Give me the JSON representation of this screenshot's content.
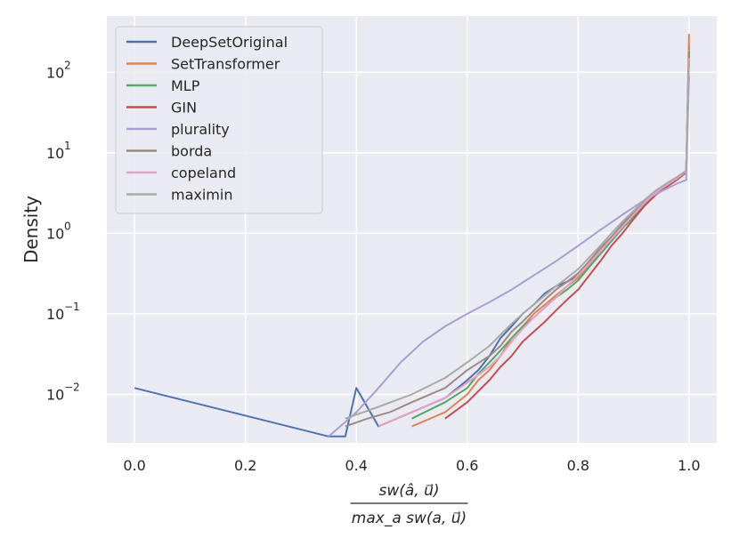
{
  "chart_data": {
    "type": "line",
    "ylabel": "Density",
    "xlabel_numerator": "sw(â, u⃗)",
    "xlabel_denominator": "max_a sw(a, u⃗)",
    "x_ticks": [
      0.0,
      0.2,
      0.4,
      0.6,
      0.8,
      1.0
    ],
    "x_tick_labels": [
      "0.0",
      "0.2",
      "0.4",
      "0.6",
      "0.8",
      "1.0"
    ],
    "y_ticks": [
      0.01,
      0.1,
      1,
      10,
      100
    ],
    "y_tick_labels": [
      {
        "base": "10",
        "exp": "−2"
      },
      {
        "base": "10",
        "exp": "−1"
      },
      {
        "base": "10",
        "exp": "0"
      },
      {
        "base": "10",
        "exp": "1"
      },
      {
        "base": "10",
        "exp": "2"
      }
    ],
    "xlim": [
      -0.05,
      1.05
    ],
    "ylim": [
      0.0025,
      500
    ],
    "yscale": "log",
    "grid": true,
    "legend_position": "upper-left",
    "background": "#eaeaf2",
    "series": [
      {
        "name": "DeepSetOriginal",
        "color": "#4c72b0",
        "x": [
          0.0,
          0.35,
          0.38,
          0.4,
          0.44,
          0.5,
          0.56,
          0.6,
          0.62,
          0.64,
          0.66,
          0.68,
          0.7,
          0.72,
          0.74,
          0.76,
          0.78,
          0.8,
          0.82,
          0.84,
          0.86,
          0.88,
          0.9,
          0.92,
          0.94,
          0.96,
          0.98,
          0.995,
          1.0
        ],
        "y": [
          0.012,
          0.003,
          0.003,
          0.012,
          0.004,
          0.006,
          0.009,
          0.015,
          0.02,
          0.03,
          0.05,
          0.07,
          0.1,
          0.13,
          0.18,
          0.22,
          0.25,
          0.3,
          0.45,
          0.65,
          0.9,
          1.3,
          1.8,
          2.5,
          3.3,
          4.0,
          5.0,
          6.0,
          220
        ]
      },
      {
        "name": "SetTransformer",
        "color": "#dd8452",
        "x": [
          0.5,
          0.56,
          0.6,
          0.62,
          0.64,
          0.66,
          0.68,
          0.7,
          0.72,
          0.74,
          0.76,
          0.78,
          0.8,
          0.82,
          0.84,
          0.86,
          0.88,
          0.9,
          0.92,
          0.94,
          0.96,
          0.98,
          0.995,
          1.0
        ],
        "y": [
          0.004,
          0.006,
          0.01,
          0.015,
          0.02,
          0.03,
          0.05,
          0.07,
          0.1,
          0.13,
          0.17,
          0.22,
          0.28,
          0.4,
          0.6,
          0.85,
          1.2,
          1.7,
          2.4,
          3.2,
          4.0,
          5.0,
          6.0,
          300
        ]
      },
      {
        "name": "MLP",
        "color": "#55a868",
        "x": [
          0.5,
          0.56,
          0.6,
          0.62,
          0.64,
          0.66,
          0.68,
          0.7,
          0.72,
          0.74,
          0.76,
          0.78,
          0.8,
          0.82,
          0.84,
          0.86,
          0.88,
          0.9,
          0.92,
          0.94,
          0.96,
          0.98,
          0.995,
          1.0
        ],
        "y": [
          0.005,
          0.008,
          0.012,
          0.018,
          0.025,
          0.035,
          0.05,
          0.07,
          0.09,
          0.12,
          0.16,
          0.2,
          0.26,
          0.38,
          0.55,
          0.8,
          1.15,
          1.6,
          2.3,
          3.1,
          3.9,
          4.8,
          5.8,
          180
        ]
      },
      {
        "name": "GIN",
        "color": "#c44e52",
        "x": [
          0.56,
          0.6,
          0.64,
          0.66,
          0.68,
          0.7,
          0.72,
          0.74,
          0.76,
          0.78,
          0.8,
          0.82,
          0.84,
          0.86,
          0.88,
          0.9,
          0.92,
          0.94,
          0.96,
          0.98,
          0.995,
          1.0
        ],
        "y": [
          0.005,
          0.008,
          0.015,
          0.022,
          0.03,
          0.045,
          0.06,
          0.08,
          0.11,
          0.15,
          0.2,
          0.3,
          0.45,
          0.7,
          1.0,
          1.5,
          2.2,
          3.0,
          3.8,
          4.7,
          5.7,
          160
        ]
      },
      {
        "name": "plurality",
        "color": "#a89fd0",
        "x": [
          0.35,
          0.4,
          0.44,
          0.48,
          0.52,
          0.56,
          0.6,
          0.64,
          0.68,
          0.72,
          0.76,
          0.8,
          0.84,
          0.88,
          0.92,
          0.96,
          0.98,
          0.995,
          1.0
        ],
        "y": [
          0.003,
          0.006,
          0.012,
          0.025,
          0.045,
          0.07,
          0.1,
          0.14,
          0.2,
          0.3,
          0.45,
          0.7,
          1.1,
          1.7,
          2.6,
          3.6,
          4.2,
          4.6,
          90
        ]
      },
      {
        "name": "borda",
        "color": "#9e8a82",
        "x": [
          0.38,
          0.42,
          0.46,
          0.5,
          0.56,
          0.6,
          0.64,
          0.66,
          0.68,
          0.7,
          0.72,
          0.74,
          0.76,
          0.78,
          0.8,
          0.82,
          0.84,
          0.86,
          0.88,
          0.9,
          0.92,
          0.94,
          0.96,
          0.98,
          0.995,
          1.0
        ],
        "y": [
          0.004,
          0.005,
          0.006,
          0.008,
          0.012,
          0.02,
          0.03,
          0.04,
          0.06,
          0.08,
          0.11,
          0.15,
          0.2,
          0.25,
          0.32,
          0.45,
          0.65,
          0.9,
          1.3,
          1.8,
          2.5,
          3.3,
          4.1,
          5.0,
          6.0,
          170
        ]
      },
      {
        "name": "copeland",
        "color": "#e6a0c4",
        "x": [
          0.44,
          0.5,
          0.56,
          0.6,
          0.64,
          0.66,
          0.68,
          0.7,
          0.72,
          0.74,
          0.76,
          0.78,
          0.8,
          0.82,
          0.84,
          0.86,
          0.88,
          0.9,
          0.92,
          0.94,
          0.96,
          0.98,
          0.995,
          1.0
        ],
        "y": [
          0.004,
          0.006,
          0.009,
          0.014,
          0.022,
          0.03,
          0.045,
          0.065,
          0.09,
          0.12,
          0.16,
          0.22,
          0.3,
          0.42,
          0.6,
          0.85,
          1.2,
          1.7,
          2.4,
          3.2,
          4.0,
          4.9,
          5.9,
          150
        ]
      },
      {
        "name": "maximin",
        "color": "#a9a9a9",
        "x": [
          0.38,
          0.44,
          0.5,
          0.56,
          0.6,
          0.64,
          0.66,
          0.68,
          0.7,
          0.72,
          0.74,
          0.76,
          0.78,
          0.8,
          0.82,
          0.84,
          0.86,
          0.88,
          0.9,
          0.92,
          0.94,
          0.96,
          0.98,
          0.995,
          1.0
        ],
        "y": [
          0.005,
          0.007,
          0.01,
          0.016,
          0.025,
          0.04,
          0.055,
          0.075,
          0.1,
          0.13,
          0.17,
          0.22,
          0.28,
          0.36,
          0.5,
          0.7,
          1.0,
          1.4,
          1.9,
          2.6,
          3.4,
          4.2,
          5.1,
          6.0,
          140
        ]
      }
    ]
  }
}
